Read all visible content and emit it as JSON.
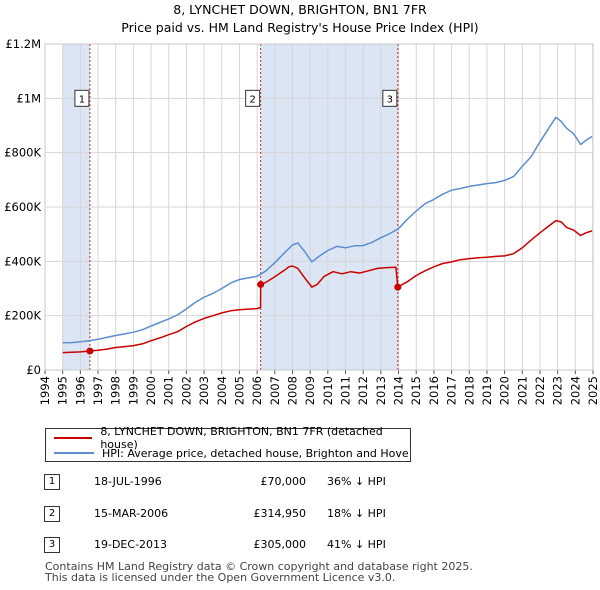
{
  "title_line1": "8, LYNCHET DOWN, BRIGHTON, BN1 7FR",
  "title_line2": "Price paid vs. HM Land Registry's House Price Index (HPI)",
  "colors": {
    "property": "#cc0000",
    "hpi": "#5b8fd0",
    "shade": "#dce5f3"
  },
  "chart_data": {
    "type": "line",
    "xlim": [
      1994,
      2025
    ],
    "ylim": [
      0,
      1200000
    ],
    "y_ticks": [
      {
        "value": 0,
        "label": "£0"
      },
      {
        "value": 200000,
        "label": "£200K"
      },
      {
        "value": 400000,
        "label": "£400K"
      },
      {
        "value": 600000,
        "label": "£600K"
      },
      {
        "value": 800000,
        "label": "£800K"
      },
      {
        "value": 1000000,
        "label": "£1M"
      },
      {
        "value": 1200000,
        "label": "£1.2M"
      }
    ],
    "x_ticks": [
      "1994",
      "1995",
      "1996",
      "1997",
      "1998",
      "1999",
      "2000",
      "2001",
      "2002",
      "2003",
      "2004",
      "2005",
      "2006",
      "2007",
      "2008",
      "2009",
      "2010",
      "2011",
      "2012",
      "2013",
      "2014",
      "2015",
      "2016",
      "2017",
      "2018",
      "2019",
      "2020",
      "2021",
      "2022",
      "2023",
      "2024",
      "2025"
    ],
    "shaded_ranges": [
      [
        1995.0,
        1996.54
      ],
      [
        2006.2,
        2013.96
      ],
      [
        2024.95,
        2025.0
      ]
    ],
    "series": [
      {
        "name": "8, LYNCHET DOWN, BRIGHTON, BN1 7FR (detached house)",
        "color": "#cc0000",
        "points": [
          [
            1995.0,
            64000
          ],
          [
            1995.5,
            65000
          ],
          [
            1996.0,
            66500
          ],
          [
            1996.54,
            70000
          ],
          [
            1997.0,
            73000
          ],
          [
            1997.5,
            77000
          ],
          [
            1998.0,
            83000
          ],
          [
            1998.5,
            86000
          ],
          [
            1999.0,
            90000
          ],
          [
            1999.5,
            96000
          ],
          [
            2000.0,
            108000
          ],
          [
            2000.5,
            118000
          ],
          [
            2001.0,
            130000
          ],
          [
            2001.5,
            141000
          ],
          [
            2002.0,
            160000
          ],
          [
            2002.5,
            177000
          ],
          [
            2003.0,
            190000
          ],
          [
            2003.5,
            200000
          ],
          [
            2004.0,
            210000
          ],
          [
            2004.5,
            218000
          ],
          [
            2005.0,
            222000
          ],
          [
            2005.5,
            224000
          ],
          [
            2006.0,
            226000
          ],
          [
            2006.19,
            230000
          ],
          [
            2006.2,
            314950
          ],
          [
            2006.5,
            323000
          ],
          [
            2007.0,
            343000
          ],
          [
            2007.5,
            365000
          ],
          [
            2007.8,
            380000
          ],
          [
            2008.0,
            383000
          ],
          [
            2008.3,
            374000
          ],
          [
            2008.7,
            338000
          ],
          [
            2009.1,
            305000
          ],
          [
            2009.4,
            315000
          ],
          [
            2009.8,
            345000
          ],
          [
            2010.3,
            362000
          ],
          [
            2010.8,
            354000
          ],
          [
            2011.3,
            362000
          ],
          [
            2011.8,
            357000
          ],
          [
            2012.3,
            365000
          ],
          [
            2012.8,
            374000
          ],
          [
            2013.3,
            377000
          ],
          [
            2013.85,
            378000
          ],
          [
            2013.96,
            305000
          ],
          [
            2014.5,
            325000
          ],
          [
            2015.0,
            348000
          ],
          [
            2015.5,
            365000
          ],
          [
            2016.0,
            380000
          ],
          [
            2016.5,
            392000
          ],
          [
            2017.0,
            398000
          ],
          [
            2017.5,
            406000
          ],
          [
            2018.0,
            410000
          ],
          [
            2018.5,
            413000
          ],
          [
            2019.0,
            415000
          ],
          [
            2019.5,
            418000
          ],
          [
            2020.0,
            420000
          ],
          [
            2020.5,
            428000
          ],
          [
            2021.0,
            450000
          ],
          [
            2021.5,
            478000
          ],
          [
            2022.0,
            505000
          ],
          [
            2022.5,
            530000
          ],
          [
            2022.9,
            550000
          ],
          [
            2023.2,
            545000
          ],
          [
            2023.5,
            525000
          ],
          [
            2023.9,
            515000
          ],
          [
            2024.3,
            495000
          ],
          [
            2024.6,
            505000
          ],
          [
            2024.95,
            512000
          ]
        ]
      },
      {
        "name": "HPI: Average price, detached house, Brighton and Hove",
        "color": "#5b8fd0",
        "points": [
          [
            1995.0,
            100000
          ],
          [
            1995.5,
            101000
          ],
          [
            1996.0,
            104000
          ],
          [
            1996.5,
            108000
          ],
          [
            1997.0,
            113000
          ],
          [
            1997.5,
            120000
          ],
          [
            1998.0,
            127000
          ],
          [
            1998.5,
            133000
          ],
          [
            1999.0,
            139000
          ],
          [
            1999.5,
            148000
          ],
          [
            2000.0,
            162000
          ],
          [
            2000.5,
            175000
          ],
          [
            2001.0,
            188000
          ],
          [
            2001.5,
            203000
          ],
          [
            2002.0,
            225000
          ],
          [
            2002.5,
            249000
          ],
          [
            2003.0,
            268000
          ],
          [
            2003.5,
            282000
          ],
          [
            2004.0,
            300000
          ],
          [
            2004.5,
            320000
          ],
          [
            2005.0,
            333000
          ],
          [
            2005.5,
            339000
          ],
          [
            2006.0,
            345000
          ],
          [
            2006.5,
            365000
          ],
          [
            2007.0,
            395000
          ],
          [
            2007.5,
            428000
          ],
          [
            2008.0,
            460000
          ],
          [
            2008.3,
            468000
          ],
          [
            2008.7,
            435000
          ],
          [
            2009.1,
            398000
          ],
          [
            2009.5,
            418000
          ],
          [
            2010.0,
            440000
          ],
          [
            2010.5,
            455000
          ],
          [
            2011.0,
            450000
          ],
          [
            2011.5,
            457000
          ],
          [
            2012.0,
            458000
          ],
          [
            2012.5,
            470000
          ],
          [
            2013.0,
            487000
          ],
          [
            2013.5,
            502000
          ],
          [
            2014.0,
            520000
          ],
          [
            2014.5,
            555000
          ],
          [
            2015.0,
            585000
          ],
          [
            2015.5,
            612000
          ],
          [
            2016.0,
            628000
          ],
          [
            2016.5,
            647000
          ],
          [
            2017.0,
            662000
          ],
          [
            2017.5,
            668000
          ],
          [
            2018.0,
            676000
          ],
          [
            2018.5,
            681000
          ],
          [
            2019.0,
            686000
          ],
          [
            2019.5,
            690000
          ],
          [
            2020.0,
            698000
          ],
          [
            2020.5,
            712000
          ],
          [
            2021.0,
            750000
          ],
          [
            2021.5,
            785000
          ],
          [
            2022.0,
            840000
          ],
          [
            2022.5,
            890000
          ],
          [
            2022.9,
            930000
          ],
          [
            2023.2,
            915000
          ],
          [
            2023.5,
            890000
          ],
          [
            2023.9,
            870000
          ],
          [
            2024.3,
            830000
          ],
          [
            2024.6,
            845000
          ],
          [
            2024.95,
            860000
          ]
        ]
      }
    ],
    "markers": [
      {
        "label": "1",
        "x": 1996.54,
        "y": 70000
      },
      {
        "label": "2",
        "x": 2006.2,
        "y": 314950
      },
      {
        "label": "3",
        "x": 2013.96,
        "y": 305000
      }
    ],
    "marker_label_value": 1000000
  },
  "legend": {
    "property_label": "8, LYNCHET DOWN, BRIGHTON, BN1 7FR (detached house)",
    "hpi_label": "HPI: Average price, detached house, Brighton and Hove"
  },
  "transactions": [
    {
      "num": "1",
      "date": "18-JUL-1996",
      "price": "£70,000",
      "relation": "36% ↓ HPI"
    },
    {
      "num": "2",
      "date": "15-MAR-2006",
      "price": "£314,950",
      "relation": "18% ↓ HPI"
    },
    {
      "num": "3",
      "date": "19-DEC-2013",
      "price": "£305,000",
      "relation": "41% ↓ HPI"
    }
  ],
  "footer": {
    "line1": "Contains HM Land Registry data © Crown copyright and database right 2025.",
    "line2": "This data is licensed under the Open Government Licence v3.0."
  }
}
